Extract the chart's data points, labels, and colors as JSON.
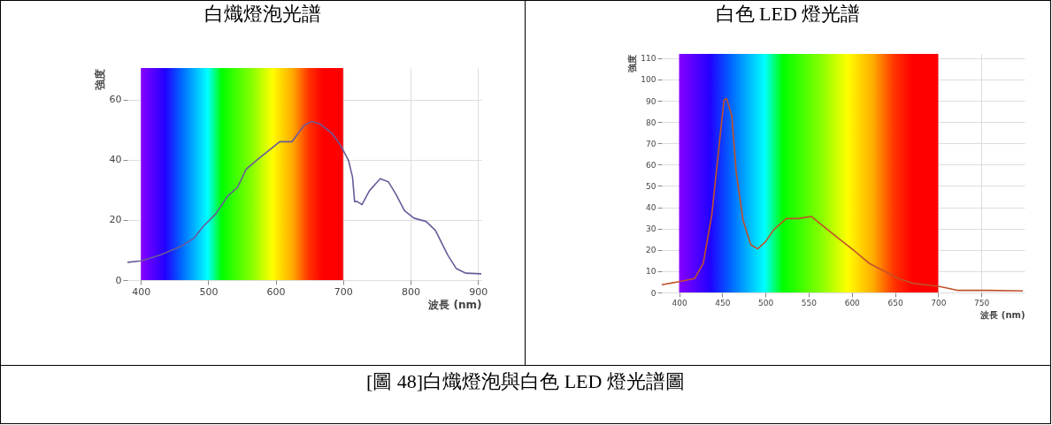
{
  "chart_data": [
    {
      "type": "line",
      "title": "白熾燈泡光譜",
      "xlabel": "波長 (nm)",
      "ylabel": "強度",
      "annotations": [
        "[圖 48]白熾燈泡與白色 LED 燈光譜圖"
      ],
      "xlim": [
        380,
        905
      ],
      "ylim": [
        0,
        70.5
      ],
      "xticks": [
        400,
        500,
        600,
        700,
        800,
        900
      ],
      "yticks": [
        0,
        20,
        40,
        60
      ],
      "grid": true,
      "bands": [
        {
          "axis": "x",
          "from": 400,
          "to": 700
        }
      ],
      "series": [
        {
          "color": "#6a5a9a",
          "x": [
            380,
            400,
            429,
            461,
            479,
            493,
            511,
            529,
            543,
            556,
            574,
            588,
            606,
            624,
            642,
            653,
            665,
            683,
            696,
            708,
            714,
            717,
            721,
            728,
            739,
            755,
            767,
            778,
            791,
            805,
            823,
            837,
            855,
            868,
            882,
            905
          ],
          "values": [
            5.9,
            6.4,
            8.4,
            11.4,
            14,
            18,
            22,
            28,
            30.7,
            36.8,
            40.3,
            42.8,
            46,
            46,
            51.4,
            52.7,
            52,
            48.9,
            44.9,
            39.8,
            34.2,
            26.1,
            26.1,
            25.1,
            29.7,
            33.7,
            32.7,
            28.7,
            23.1,
            20.6,
            19.5,
            16.5,
            8.4,
            3.8,
            2.3,
            2.1
          ]
        }
      ]
    },
    {
      "type": "line",
      "title": "白色 LED 燈光譜",
      "xlabel": "波長 (nm)",
      "ylabel": "強度",
      "xlim": [
        380,
        800
      ],
      "ylim": [
        0,
        112
      ],
      "xticks": [
        400,
        450,
        500,
        550,
        600,
        650,
        700,
        750
      ],
      "yticks": [
        0,
        10,
        20,
        30,
        40,
        50,
        60,
        70,
        80,
        90,
        100,
        110
      ],
      "grid": true,
      "bands": [
        {
          "axis": "x",
          "from": 400,
          "to": 700
        }
      ],
      "series": [
        {
          "color": "#c0502a",
          "x": [
            380,
            400,
            418,
            428,
            438,
            447,
            452,
            455,
            461,
            466,
            474,
            483,
            491,
            500,
            510,
            524,
            538,
            553,
            565,
            585,
            603,
            620,
            637,
            654,
            671,
            700,
            709,
            722,
            756,
            798
          ],
          "values": [
            3.6,
            5.1,
            6.5,
            13.7,
            36.8,
            71.5,
            90.3,
            91,
            83,
            57,
            34,
            22.4,
            20.5,
            23.8,
            29.6,
            34.7,
            34.7,
            35.7,
            31.8,
            25.3,
            19.5,
            13.7,
            10.1,
            6.5,
            4.3,
            2.9,
            2.2,
            1.0,
            1.0,
            0.7
          ]
        }
      ]
    }
  ]
}
